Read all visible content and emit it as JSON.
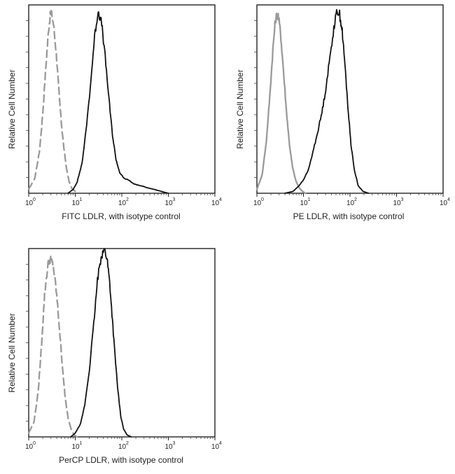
{
  "chart_data": [
    {
      "type": "line",
      "panel": "fitc",
      "xlabel": "FITC  LDLR,  with isotype control",
      "ylabel": "Relative Cell Number",
      "x_scale": "log",
      "xlim": [
        1,
        10000
      ],
      "ylim": [
        0,
        1
      ],
      "xticks": [
        "0",
        "1",
        "2",
        "3",
        "4"
      ],
      "grid": false,
      "series": [
        {
          "color": "#9a9a9a",
          "style": "dashed",
          "x": [
            1.0,
            1.35,
            1.7,
            2.0,
            2.35,
            2.7,
            3.0,
            3.4,
            3.9,
            4.4,
            5.0,
            5.7,
            6.5,
            7.4,
            8.5,
            10.0
          ],
          "y": [
            0.02,
            0.08,
            0.22,
            0.42,
            0.68,
            0.88,
            0.97,
            0.9,
            0.75,
            0.56,
            0.38,
            0.24,
            0.13,
            0.06,
            0.025,
            0.01
          ]
        },
        {
          "color": "#111111",
          "style": "solid",
          "x": [
            7.0,
            9.0,
            11.0,
            14.0,
            17.0,
            21.0,
            26.0,
            31.0,
            37.0,
            44.0,
            53.0,
            63.0,
            75.0,
            90.0,
            110.0,
            140.0,
            180.0,
            250.0,
            350.0,
            500.0,
            700.0,
            1000.0
          ],
          "y": [
            0.0,
            0.02,
            0.06,
            0.16,
            0.33,
            0.56,
            0.83,
            0.97,
            0.9,
            0.72,
            0.5,
            0.31,
            0.18,
            0.11,
            0.08,
            0.07,
            0.05,
            0.04,
            0.03,
            0.02,
            0.01,
            0.0
          ]
        }
      ]
    },
    {
      "type": "line",
      "panel": "pe",
      "xlabel": "PE  LDLR,  with isotype control",
      "ylabel": "Relative Cell Number",
      "x_scale": "log",
      "xlim": [
        1,
        10000
      ],
      "ylim": [
        0,
        1
      ],
      "xticks": [
        "0",
        "1",
        "2",
        "3",
        "4"
      ],
      "grid": false,
      "series": [
        {
          "color": "#9a9a9a",
          "style": "solid",
          "x": [
            1.0,
            1.3,
            1.6,
            1.9,
            2.2,
            2.5,
            2.8,
            3.2,
            3.7,
            4.3,
            5.0,
            5.8,
            6.8,
            8.0,
            9.5,
            11.0
          ],
          "y": [
            0.02,
            0.1,
            0.28,
            0.52,
            0.76,
            0.92,
            0.96,
            0.86,
            0.66,
            0.44,
            0.26,
            0.14,
            0.07,
            0.03,
            0.01,
            0.0
          ]
        },
        {
          "color": "#111111",
          "style": "solid",
          "x": [
            4.0,
            6.0,
            8.0,
            10.0,
            13.0,
            16.0,
            20.0,
            25.0,
            30.0,
            37.0,
            45.0,
            53.0,
            60.0,
            68.0,
            78.0,
            90.0,
            105.0,
            125.0,
            150.0,
            190.0,
            250.0
          ],
          "y": [
            0.0,
            0.01,
            0.04,
            0.07,
            0.13,
            0.22,
            0.32,
            0.43,
            0.55,
            0.72,
            0.88,
            0.97,
            0.95,
            0.86,
            0.68,
            0.46,
            0.26,
            0.12,
            0.04,
            0.01,
            0.0
          ]
        }
      ]
    },
    {
      "type": "line",
      "panel": "percp",
      "xlabel": "PerCP LDLR, with isotype control",
      "ylabel": "Relative Cell Number",
      "x_scale": "log",
      "xlim": [
        1,
        10000
      ],
      "ylim": [
        0,
        1
      ],
      "xticks": [
        "0",
        "1",
        "2",
        "3",
        "4"
      ],
      "grid": false,
      "series": [
        {
          "color": "#9a9a9a",
          "style": "dashed",
          "x": [
            1.0,
            1.3,
            1.6,
            1.9,
            2.2,
            2.6,
            3.0,
            3.4,
            3.9,
            4.5,
            5.2,
            6.0,
            7.0,
            8.2,
            9.5,
            11.0
          ],
          "y": [
            0.02,
            0.08,
            0.24,
            0.5,
            0.76,
            0.92,
            0.95,
            0.9,
            0.78,
            0.6,
            0.4,
            0.22,
            0.1,
            0.04,
            0.01,
            0.0
          ]
        },
        {
          "color": "#111111",
          "style": "solid",
          "x": [
            8.0,
            10.0,
            13.0,
            16.0,
            20.0,
            25.0,
            30.0,
            36.0,
            42.0,
            48.0,
            55.0,
            63.0,
            72.0,
            83.0,
            95.0,
            110.0,
            130.0,
            160.0
          ],
          "y": [
            0.0,
            0.02,
            0.07,
            0.17,
            0.35,
            0.6,
            0.83,
            0.96,
            1.0,
            0.95,
            0.82,
            0.62,
            0.42,
            0.24,
            0.11,
            0.04,
            0.01,
            0.0
          ]
        }
      ]
    }
  ]
}
